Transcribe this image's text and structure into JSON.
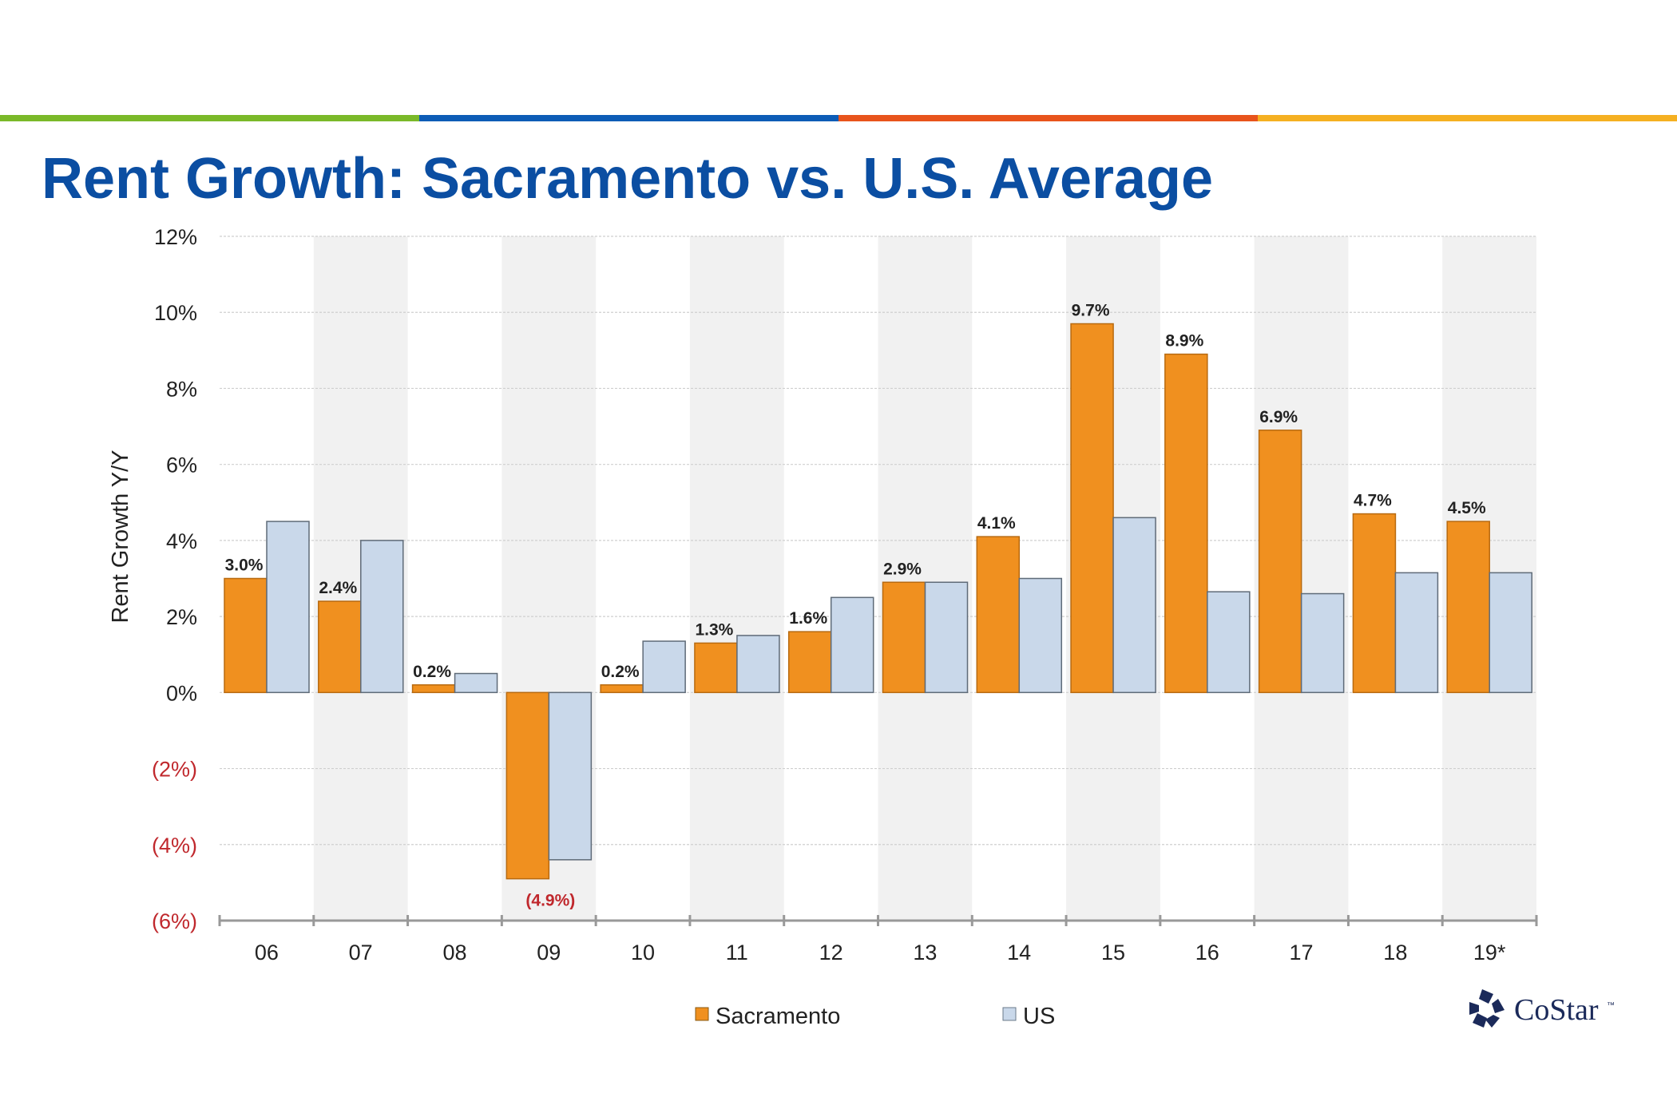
{
  "slide": {
    "title": "Rent Growth: Sacramento vs. U.S. Average",
    "accent_stripe_colors": [
      "#7ab929",
      "#0d5cb6",
      "#e8541c",
      "#f5b021"
    ],
    "logo_text": "CoStar",
    "logo_tm": "™"
  },
  "chart_data": {
    "type": "bar",
    "title": "Rent Growth: Sacramento vs. U.S. Average",
    "xlabel": "",
    "ylabel": "Rent Growth Y/Y",
    "ylim": [
      -6,
      12
    ],
    "yticks": [
      12,
      10,
      8,
      6,
      4,
      2,
      0,
      -2,
      -4,
      -6
    ],
    "ytick_labels": [
      "12%",
      "10%",
      "8%",
      "6%",
      "4%",
      "2%",
      "0%",
      "(2%)",
      "(4%)",
      "(6%)"
    ],
    "categories": [
      "06",
      "07",
      "08",
      "09",
      "10",
      "11",
      "12",
      "13",
      "14",
      "15",
      "16",
      "17",
      "18",
      "19*"
    ],
    "grid": true,
    "alternating_column_shading": true,
    "legend_position": "bottom",
    "series": [
      {
        "name": "Sacramento",
        "color": "#f0901f",
        "values": [
          3.0,
          2.4,
          0.2,
          -4.9,
          0.2,
          1.3,
          1.6,
          2.9,
          4.1,
          9.7,
          8.9,
          6.9,
          4.7,
          4.5
        ],
        "data_labels": [
          "3.0%",
          "2.4%",
          "0.2%",
          "(4.9%)",
          "0.2%",
          "1.3%",
          "1.6%",
          "2.9%",
          "4.1%",
          "9.7%",
          "8.9%",
          "6.9%",
          "4.7%",
          "4.5%"
        ]
      },
      {
        "name": "US",
        "color": "#c9d8ea",
        "values": [
          4.5,
          4.0,
          0.5,
          -4.4,
          1.35,
          1.5,
          2.5,
          2.9,
          3.0,
          4.6,
          2.65,
          2.6,
          3.15,
          3.15
        ]
      }
    ]
  }
}
